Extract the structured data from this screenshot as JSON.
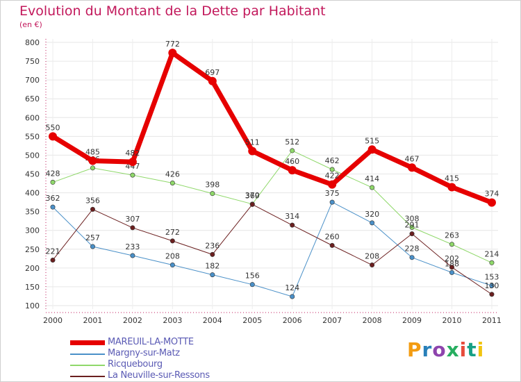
{
  "title": "Evolution du Montant de la Dette par Habitant",
  "subtitle": "(en €)",
  "logo": {
    "text": "Proxiti",
    "colors": [
      "#f39c12",
      "#2980b9",
      "#8e44ad",
      "#27ae60",
      "#e74c3c",
      "#16a085",
      "#f1c40f"
    ]
  },
  "chart_data": {
    "type": "line",
    "x": [
      "2000",
      "2001",
      "2002",
      "2003",
      "2004",
      "2005",
      "2006",
      "2007",
      "2008",
      "2009",
      "2010",
      "2011"
    ],
    "ylim": [
      100,
      800
    ],
    "yticks": [
      100,
      150,
      200,
      250,
      300,
      350,
      400,
      450,
      500,
      550,
      600,
      650,
      700,
      750,
      800
    ],
    "grid": true,
    "legend_position": "bottom-left",
    "series": [
      {
        "name": "MAREUIL-LA-MOTTE",
        "color": "#e60000",
        "width": 7,
        "values": [
          550,
          485,
          482,
          772,
          697,
          511,
          460,
          422,
          515,
          467,
          415,
          374
        ],
        "labels": [
          "550",
          "485",
          "482",
          "772",
          "697",
          "511",
          "460",
          "422",
          "515",
          "467",
          "415",
          "374"
        ]
      },
      {
        "name": "Margny-sur-Matz",
        "color": "#4a90c8",
        "width": 1,
        "values": [
          362,
          257,
          233,
          208,
          182,
          156,
          124,
          375,
          320,
          228,
          188,
          153
        ],
        "labels": [
          "362",
          "257",
          "233",
          "208",
          "182",
          "156",
          "124",
          "375",
          "320",
          "228",
          "188",
          "153"
        ]
      },
      {
        "name": "Ricquebourg",
        "color": "#8fd86a",
        "width": 1,
        "values": [
          428,
          466,
          447,
          426,
          398,
          370,
          512,
          462,
          414,
          308,
          263,
          214
        ],
        "labels": [
          "428",
          "466",
          "447",
          "426",
          "398",
          "370",
          "512",
          "462",
          "414",
          "308",
          "263",
          "214"
        ]
      },
      {
        "name": "La Neuville-sur-Ressons",
        "color": "#6b1f1f",
        "width": 1,
        "values": [
          221,
          356,
          307,
          272,
          236,
          369,
          314,
          260,
          208,
          291,
          202,
          130
        ],
        "labels": [
          "221",
          "356",
          "307",
          "272",
          "236",
          "369",
          "314",
          "260",
          "208",
          "291",
          "202",
          "130"
        ]
      }
    ]
  }
}
